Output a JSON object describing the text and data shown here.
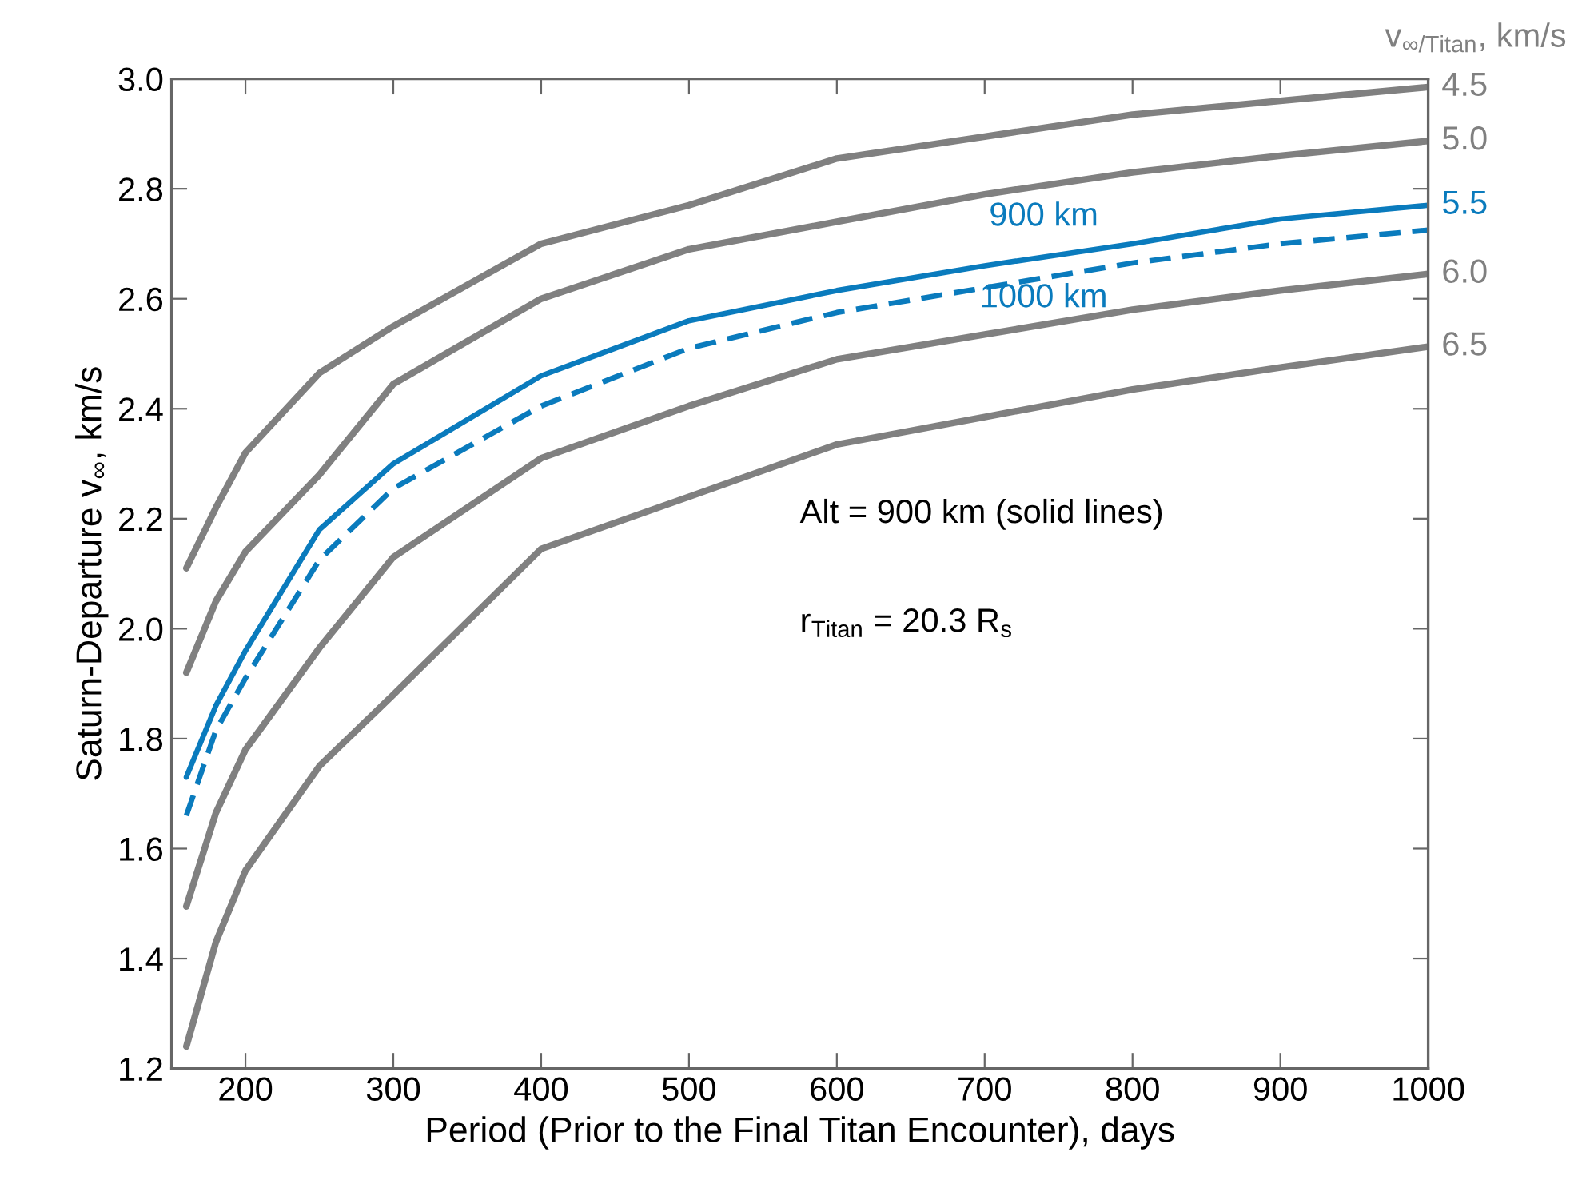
{
  "chart_data": {
    "type": "line",
    "xlabel": "Period (Prior to the Final Titan Encounter), days",
    "ylabel": "Saturn-Departure v$_{∞}$, km/s",
    "legend_title": "v$_{∞/Titan}$, km/s",
    "x": [
      160,
      180,
      200,
      250,
      300,
      400,
      500,
      600,
      700,
      800,
      900,
      1000
    ],
    "series": [
      {
        "name": "4.5",
        "color": "#808080",
        "line_style": "solid",
        "values": [
          2.11,
          2.22,
          2.32,
          2.465,
          2.55,
          2.7,
          2.77,
          2.855,
          2.895,
          2.935,
          2.96,
          2.985
        ]
      },
      {
        "name": "5.0",
        "color": "#808080",
        "line_style": "solid",
        "values": [
          1.92,
          2.05,
          2.14,
          2.28,
          2.445,
          2.6,
          2.69,
          2.74,
          2.79,
          2.83,
          2.86,
          2.887
        ]
      },
      {
        "name": "5.5",
        "color": "#0a7bbd",
        "line_style": "solid",
        "values": [
          1.73,
          1.86,
          1.96,
          2.18,
          2.3,
          2.46,
          2.56,
          2.615,
          2.66,
          2.7,
          2.745,
          2.77
        ]
      },
      {
        "color": "#0a7bbd",
        "line_style": "dashed",
        "values": [
          1.66,
          1.815,
          1.91,
          2.125,
          2.255,
          2.405,
          2.51,
          2.575,
          2.62,
          2.665,
          2.7,
          2.725
        ]
      },
      {
        "name": "6.0",
        "color": "#808080",
        "line_style": "solid",
        "values": [
          1.495,
          1.665,
          1.78,
          1.965,
          2.13,
          2.31,
          2.405,
          2.49,
          2.535,
          2.58,
          2.615,
          2.645
        ]
      },
      {
        "name": "6.5",
        "color": "#808080",
        "line_style": "solid",
        "values": [
          1.24,
          1.43,
          1.56,
          1.75,
          1.88,
          2.145,
          2.24,
          2.335,
          2.385,
          2.435,
          2.475,
          2.513
        ]
      }
    ],
    "xlim": [
      150,
      1000
    ],
    "xticks": [
      200,
      300,
      400,
      500,
      600,
      700,
      800,
      900,
      1000
    ],
    "ylim": [
      1.2,
      3.0
    ],
    "yticks": [
      {
        "value": 1.2,
        "label": "1.2"
      },
      {
        "value": 1.4,
        "label": "1.4"
      },
      {
        "value": 1.6,
        "label": "1.6"
      },
      {
        "value": 1.8,
        "label": "1.8"
      },
      {
        "value": 2.0,
        "label": "2.0"
      },
      {
        "value": 2.2,
        "label": "2.2"
      },
      {
        "value": 2.4,
        "label": "2.4"
      },
      {
        "value": 2.6,
        "label": "2.6"
      },
      {
        "value": 2.8,
        "label": "2.8"
      },
      {
        "value": 3.0,
        "label": "3.0"
      }
    ],
    "annotations": [
      {
        "text": "900 km",
        "x": 800,
        "y": 2.7
      },
      {
        "text": "1000 km",
        "x": 800,
        "y": 2.665
      },
      "Alt = 900 km (solid lines)",
      "r$_{Titan}$ = 20.3 R$_{s}$"
    ],
    "grid": false,
    "legend": false
  }
}
